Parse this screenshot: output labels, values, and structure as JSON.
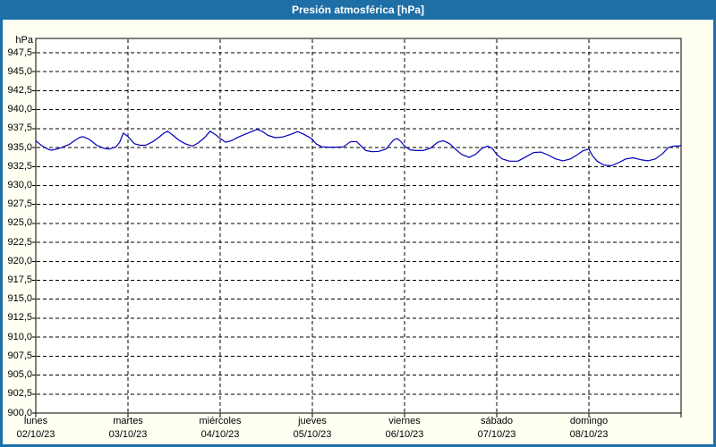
{
  "window": {
    "title": "Presión atmosférica [hPa]"
  },
  "colors": {
    "frame": "#1d6fa5",
    "titlebar_bg": "#1d6fa5",
    "titlebar_text": "#ffffff",
    "background": "#fffff2",
    "plot_bg": "#fffffd",
    "plot_border": "#000000",
    "grid": "#000000",
    "line": "#0000bb",
    "text": "#000000"
  },
  "chart_data": {
    "type": "line",
    "title": "Presión atmosférica [hPa]",
    "y_unit_label": "hPa",
    "ylabel": "",
    "xlabel": "",
    "ylim": [
      900,
      950
    ],
    "ytick_step": 2.5,
    "grid": "dashed",
    "legend": "none",
    "yticks": [
      {
        "value": 947.5,
        "label": "947,5"
      },
      {
        "value": 945.0,
        "label": "945,0"
      },
      {
        "value": 942.5,
        "label": "942,5"
      },
      {
        "value": 940.0,
        "label": "940,0"
      },
      {
        "value": 937.5,
        "label": "937,5"
      },
      {
        "value": 935.0,
        "label": "935,0"
      },
      {
        "value": 932.5,
        "label": "932,5"
      },
      {
        "value": 930.0,
        "label": "930,0"
      },
      {
        "value": 927.5,
        "label": "927,5"
      },
      {
        "value": 925.0,
        "label": "925,0"
      },
      {
        "value": 922.5,
        "label": "922,5"
      },
      {
        "value": 920.0,
        "label": "920,0"
      },
      {
        "value": 917.5,
        "label": "917,5"
      },
      {
        "value": 915.0,
        "label": "915,0"
      },
      {
        "value": 912.5,
        "label": "912,5"
      },
      {
        "value": 910.0,
        "label": "910,0"
      },
      {
        "value": 907.5,
        "label": "907,5"
      },
      {
        "value": 905.0,
        "label": "905,0"
      },
      {
        "value": 902.5,
        "label": "902,5"
      },
      {
        "value": 900.0,
        "label": "900,0"
      }
    ],
    "x_days": [
      {
        "name": "lunes",
        "date": "02/10/23"
      },
      {
        "name": "martes",
        "date": "03/10/23"
      },
      {
        "name": "miércoles",
        "date": "04/10/23"
      },
      {
        "name": "jueves",
        "date": "05/10/23"
      },
      {
        "name": "viernes",
        "date": "06/10/23"
      },
      {
        "name": "sábado",
        "date": "07/10/23"
      },
      {
        "name": "domingo",
        "date": "08/10/23"
      }
    ],
    "series": [
      {
        "name": "Presión atmosférica",
        "color": "#0000bb",
        "points": [
          [
            0.0,
            935.9
          ],
          [
            0.05,
            935.4
          ],
          [
            0.1,
            935.0
          ],
          [
            0.14,
            934.75
          ],
          [
            0.17,
            934.65
          ],
          [
            0.23,
            934.8
          ],
          [
            0.29,
            935.05
          ],
          [
            0.36,
            935.4
          ],
          [
            0.42,
            935.9
          ],
          [
            0.47,
            936.3
          ],
          [
            0.51,
            936.45
          ],
          [
            0.56,
            936.2
          ],
          [
            0.6,
            935.9
          ],
          [
            0.66,
            935.3
          ],
          [
            0.7,
            935.1
          ],
          [
            0.75,
            934.85
          ],
          [
            0.8,
            934.8
          ],
          [
            0.87,
            935.1
          ],
          [
            0.91,
            935.7
          ],
          [
            0.95,
            936.9
          ],
          [
            1.0,
            936.45
          ],
          [
            1.04,
            935.9
          ],
          [
            1.07,
            935.5
          ],
          [
            1.13,
            935.3
          ],
          [
            1.19,
            935.3
          ],
          [
            1.26,
            935.7
          ],
          [
            1.33,
            936.3
          ],
          [
            1.39,
            936.9
          ],
          [
            1.43,
            937.15
          ],
          [
            1.49,
            936.6
          ],
          [
            1.55,
            936.0
          ],
          [
            1.62,
            935.5
          ],
          [
            1.7,
            935.2
          ],
          [
            1.76,
            935.6
          ],
          [
            1.83,
            936.3
          ],
          [
            1.89,
            937.15
          ],
          [
            1.95,
            936.7
          ],
          [
            2.0,
            936.2
          ],
          [
            2.06,
            935.7
          ],
          [
            2.12,
            935.9
          ],
          [
            2.2,
            936.4
          ],
          [
            2.32,
            937.0
          ],
          [
            2.4,
            937.4
          ],
          [
            2.46,
            937.1
          ],
          [
            2.52,
            936.6
          ],
          [
            2.6,
            936.3
          ],
          [
            2.68,
            936.4
          ],
          [
            2.76,
            936.7
          ],
          [
            2.84,
            937.1
          ],
          [
            2.9,
            936.8
          ],
          [
            2.96,
            936.4
          ],
          [
            3.0,
            936.1
          ],
          [
            3.04,
            935.5
          ],
          [
            3.1,
            935.1
          ],
          [
            3.17,
            935.05
          ],
          [
            3.26,
            935.05
          ],
          [
            3.34,
            935.1
          ],
          [
            3.41,
            935.75
          ],
          [
            3.48,
            935.8
          ],
          [
            3.53,
            935.2
          ],
          [
            3.58,
            934.6
          ],
          [
            3.65,
            934.45
          ],
          [
            3.72,
            934.5
          ],
          [
            3.8,
            934.8
          ],
          [
            3.88,
            936.0
          ],
          [
            3.92,
            936.2
          ],
          [
            3.96,
            935.8
          ],
          [
            4.0,
            935.2
          ],
          [
            4.06,
            934.7
          ],
          [
            4.12,
            934.6
          ],
          [
            4.2,
            934.6
          ],
          [
            4.28,
            934.9
          ],
          [
            4.36,
            935.7
          ],
          [
            4.42,
            935.9
          ],
          [
            4.49,
            935.5
          ],
          [
            4.56,
            934.7
          ],
          [
            4.62,
            934.1
          ],
          [
            4.7,
            933.7
          ],
          [
            4.77,
            934.1
          ],
          [
            4.84,
            934.9
          ],
          [
            4.9,
            935.2
          ],
          [
            4.95,
            934.9
          ],
          [
            5.0,
            934.1
          ],
          [
            5.06,
            933.5
          ],
          [
            5.14,
            933.2
          ],
          [
            5.23,
            933.2
          ],
          [
            5.32,
            933.8
          ],
          [
            5.4,
            934.35
          ],
          [
            5.48,
            934.4
          ],
          [
            5.56,
            934.0
          ],
          [
            5.64,
            933.5
          ],
          [
            5.72,
            933.25
          ],
          [
            5.8,
            933.5
          ],
          [
            5.88,
            934.1
          ],
          [
            5.94,
            934.6
          ],
          [
            6.0,
            934.8
          ],
          [
            6.04,
            933.9
          ],
          [
            6.09,
            933.2
          ],
          [
            6.16,
            932.7
          ],
          [
            6.24,
            932.6
          ],
          [
            6.32,
            933.0
          ],
          [
            6.4,
            933.5
          ],
          [
            6.48,
            933.65
          ],
          [
            6.56,
            933.4
          ],
          [
            6.64,
            933.25
          ],
          [
            6.72,
            933.5
          ],
          [
            6.8,
            934.2
          ],
          [
            6.86,
            935.0
          ],
          [
            6.92,
            935.2
          ],
          [
            6.97,
            935.2
          ],
          [
            7.0,
            935.3
          ]
        ]
      }
    ]
  }
}
